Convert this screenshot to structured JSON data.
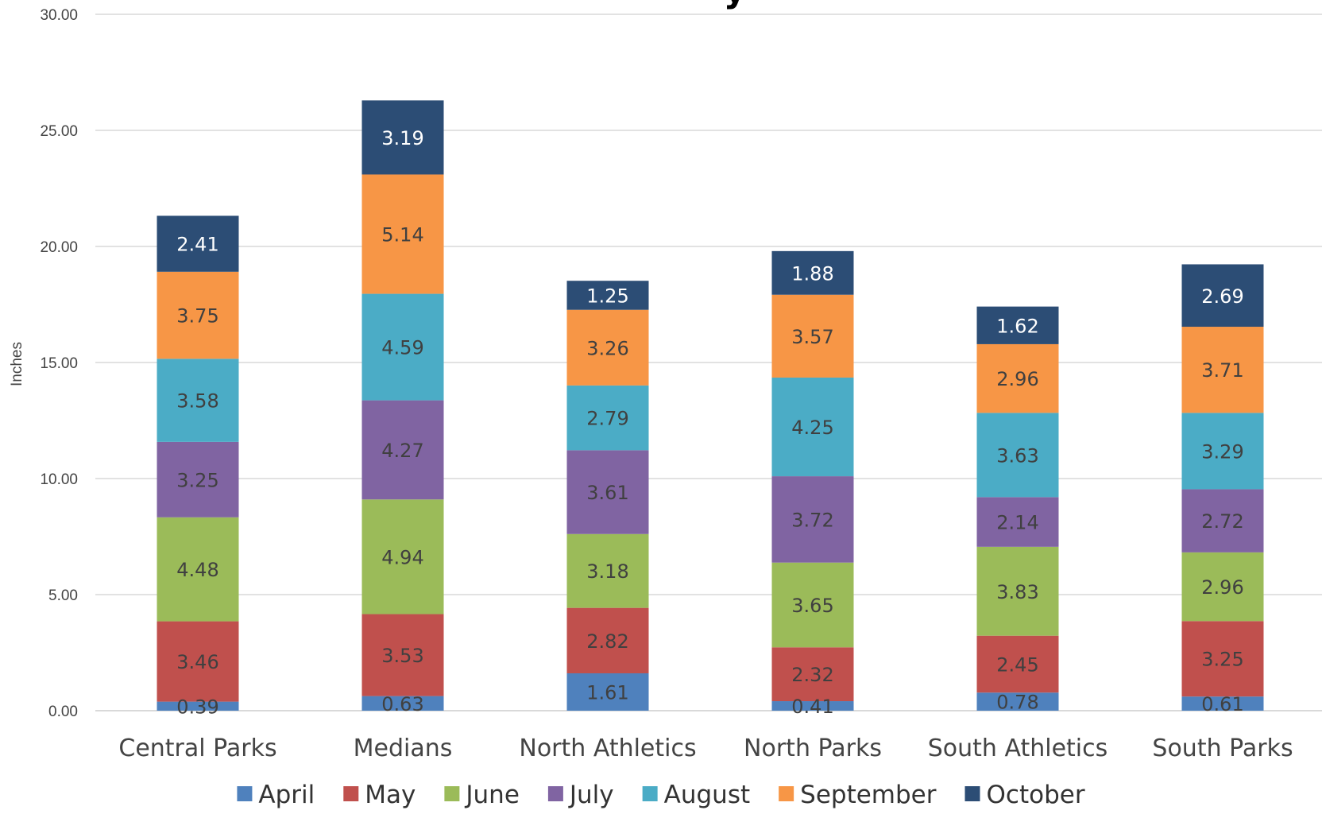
{
  "chart_data": {
    "type": "bar",
    "stacked": true,
    "title_fragment": "y",
    "ylabel": "Inches",
    "ylim": [
      0,
      30
    ],
    "yticks": [
      "0.00",
      "5.00",
      "10.00",
      "15.00",
      "20.00",
      "25.00",
      "30.00"
    ],
    "grid": true,
    "legend_position": "bottom",
    "categories": [
      "Central Parks",
      "Medians",
      "North Athletics",
      "North Parks",
      "South Athletics",
      "South Parks"
    ],
    "series": [
      {
        "name": "April",
        "color": "#4F81BD",
        "label_color": "#404040",
        "values": [
          0.39,
          0.63,
          1.61,
          0.41,
          0.78,
          0.61
        ]
      },
      {
        "name": "May",
        "color": "#C0504D",
        "label_color": "#404040",
        "values": [
          3.46,
          3.53,
          2.82,
          2.32,
          2.45,
          3.25
        ]
      },
      {
        "name": "June",
        "color": "#9BBB59",
        "label_color": "#404040",
        "values": [
          4.48,
          4.94,
          3.18,
          3.65,
          3.83,
          2.96
        ]
      },
      {
        "name": "July",
        "color": "#8064A2",
        "label_color": "#404040",
        "values": [
          3.25,
          4.27,
          3.61,
          3.72,
          2.14,
          2.72
        ]
      },
      {
        "name": "August",
        "color": "#4BACC6",
        "label_color": "#404040",
        "values": [
          3.58,
          4.59,
          2.79,
          4.25,
          3.63,
          3.29
        ]
      },
      {
        "name": "September",
        "color": "#F79646",
        "label_color": "#404040",
        "values": [
          3.75,
          5.14,
          3.26,
          3.57,
          2.96,
          3.71
        ]
      },
      {
        "name": "October",
        "color": "#2C4D75",
        "label_color": "#ffffff",
        "values": [
          2.41,
          3.19,
          1.25,
          1.88,
          1.62,
          2.69
        ]
      }
    ]
  }
}
